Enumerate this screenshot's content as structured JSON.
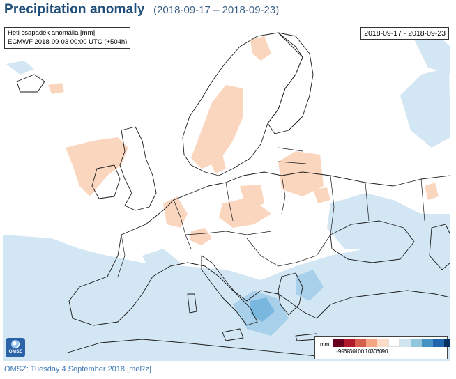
{
  "header": {
    "title": "Precipitation anomaly",
    "subtitle": "(2018-09-17 – 2018-09-23)"
  },
  "map": {
    "info_line1": "Heti csapadék anomália [mm]",
    "info_line2": "ECMWF 2018-09-03 00:00 UTC (+504h)",
    "date_range": "2018-09-17 - 2018-09-23",
    "colors": {
      "land": "#ffffff",
      "border": "#1a1a1a",
      "dry_light": "#fbd6bf",
      "wet_light": "#d2e6f3",
      "wet_mid": "#a8d0ea",
      "wet_strong": "#7ab7df"
    }
  },
  "legend": {
    "unit": "mm",
    "colors": [
      "#67001f",
      "#b2182b",
      "#d6604d",
      "#f4a582",
      "#fddbc7",
      "#ffffff",
      "#d1e5f0",
      "#92c5de",
      "#4393c3",
      "#2166ac",
      "#053061"
    ],
    "ticks": [
      "-90",
      "-60",
      "-30",
      "-10",
      "0",
      "10",
      "30",
      "60",
      "90"
    ]
  },
  "logo": {
    "text": "OMSZ",
    "icon": "globe-icon"
  },
  "footer": {
    "text": "OMSZ: Tuesday 4 September 2018  [meRz]"
  }
}
